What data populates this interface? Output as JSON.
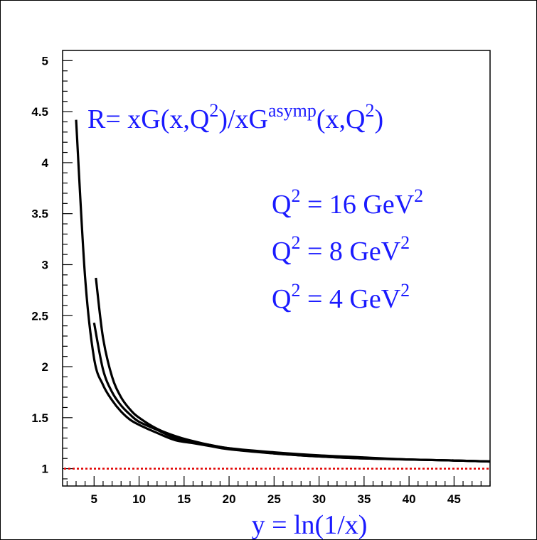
{
  "chart_data": {
    "type": "line",
    "title": "",
    "xlabel": "y = ln(1/x)",
    "ylabel": "",
    "xlim": [
      1.5,
      49
    ],
    "ylim": [
      0.83,
      5.1
    ],
    "x_ticks": [
      "5",
      "10",
      "15",
      "20",
      "25",
      "30",
      "35",
      "40",
      "45"
    ],
    "x_tick_values": [
      5,
      10,
      15,
      20,
      25,
      30,
      35,
      40,
      45
    ],
    "y_ticks": [
      "1",
      "1.5",
      "2",
      "2.5",
      "3",
      "3.5",
      "4",
      "4.5",
      "5"
    ],
    "y_tick_values": [
      1,
      1.5,
      2,
      2.5,
      3,
      3.5,
      4,
      4.5,
      5
    ],
    "formula": {
      "base1": "R= xG(x,Q",
      "sup1": "2",
      "base2": ")/xG",
      "sup2": "asymp",
      "base3": "(x,Q",
      "sup3": "2",
      "base4": ")"
    },
    "annotations": [
      {
        "pre": "Q",
        "sup1": "2",
        "mid": " = 16 GeV",
        "sup2": "2"
      },
      {
        "pre": "Q",
        "sup1": "2",
        "mid": " = 8 GeV",
        "sup2": "2"
      },
      {
        "pre": "Q",
        "sup1": "2",
        "mid": " = 4 GeV",
        "sup2": "2"
      }
    ],
    "series": [
      {
        "color": "#000000",
        "x": [
          3,
          4,
          5,
          6,
          7,
          8,
          9,
          10,
          12,
          14,
          16,
          18,
          20,
          25,
          30,
          35,
          40,
          45,
          49
        ],
        "y": [
          4.42,
          2.88,
          2.08,
          1.82,
          1.67,
          1.56,
          1.48,
          1.43,
          1.35,
          1.28,
          1.25,
          1.22,
          1.19,
          1.15,
          1.12,
          1.1,
          1.09,
          1.08,
          1.07
        ]
      },
      {
        "color": "#000000",
        "x": [
          5,
          6,
          7,
          8,
          9,
          10,
          12,
          14,
          16,
          18,
          20,
          25,
          30,
          35,
          40,
          45,
          49
        ],
        "y": [
          2.43,
          1.97,
          1.75,
          1.62,
          1.53,
          1.46,
          1.38,
          1.3,
          1.26,
          1.23,
          1.2,
          1.15,
          1.12,
          1.1,
          1.09,
          1.08,
          1.07
        ]
      },
      {
        "color": "#000000",
        "x": [
          5.2,
          6,
          7,
          8,
          9,
          10,
          12,
          14,
          16,
          18,
          20,
          25,
          30,
          35,
          40,
          45,
          49
        ],
        "y": [
          2.87,
          2.28,
          1.9,
          1.7,
          1.58,
          1.5,
          1.39,
          1.32,
          1.27,
          1.23,
          1.2,
          1.16,
          1.13,
          1.11,
          1.09,
          1.08,
          1.07
        ]
      }
    ],
    "reference_line": {
      "y": 1,
      "color": "#e00000",
      "style": "dotted"
    }
  }
}
